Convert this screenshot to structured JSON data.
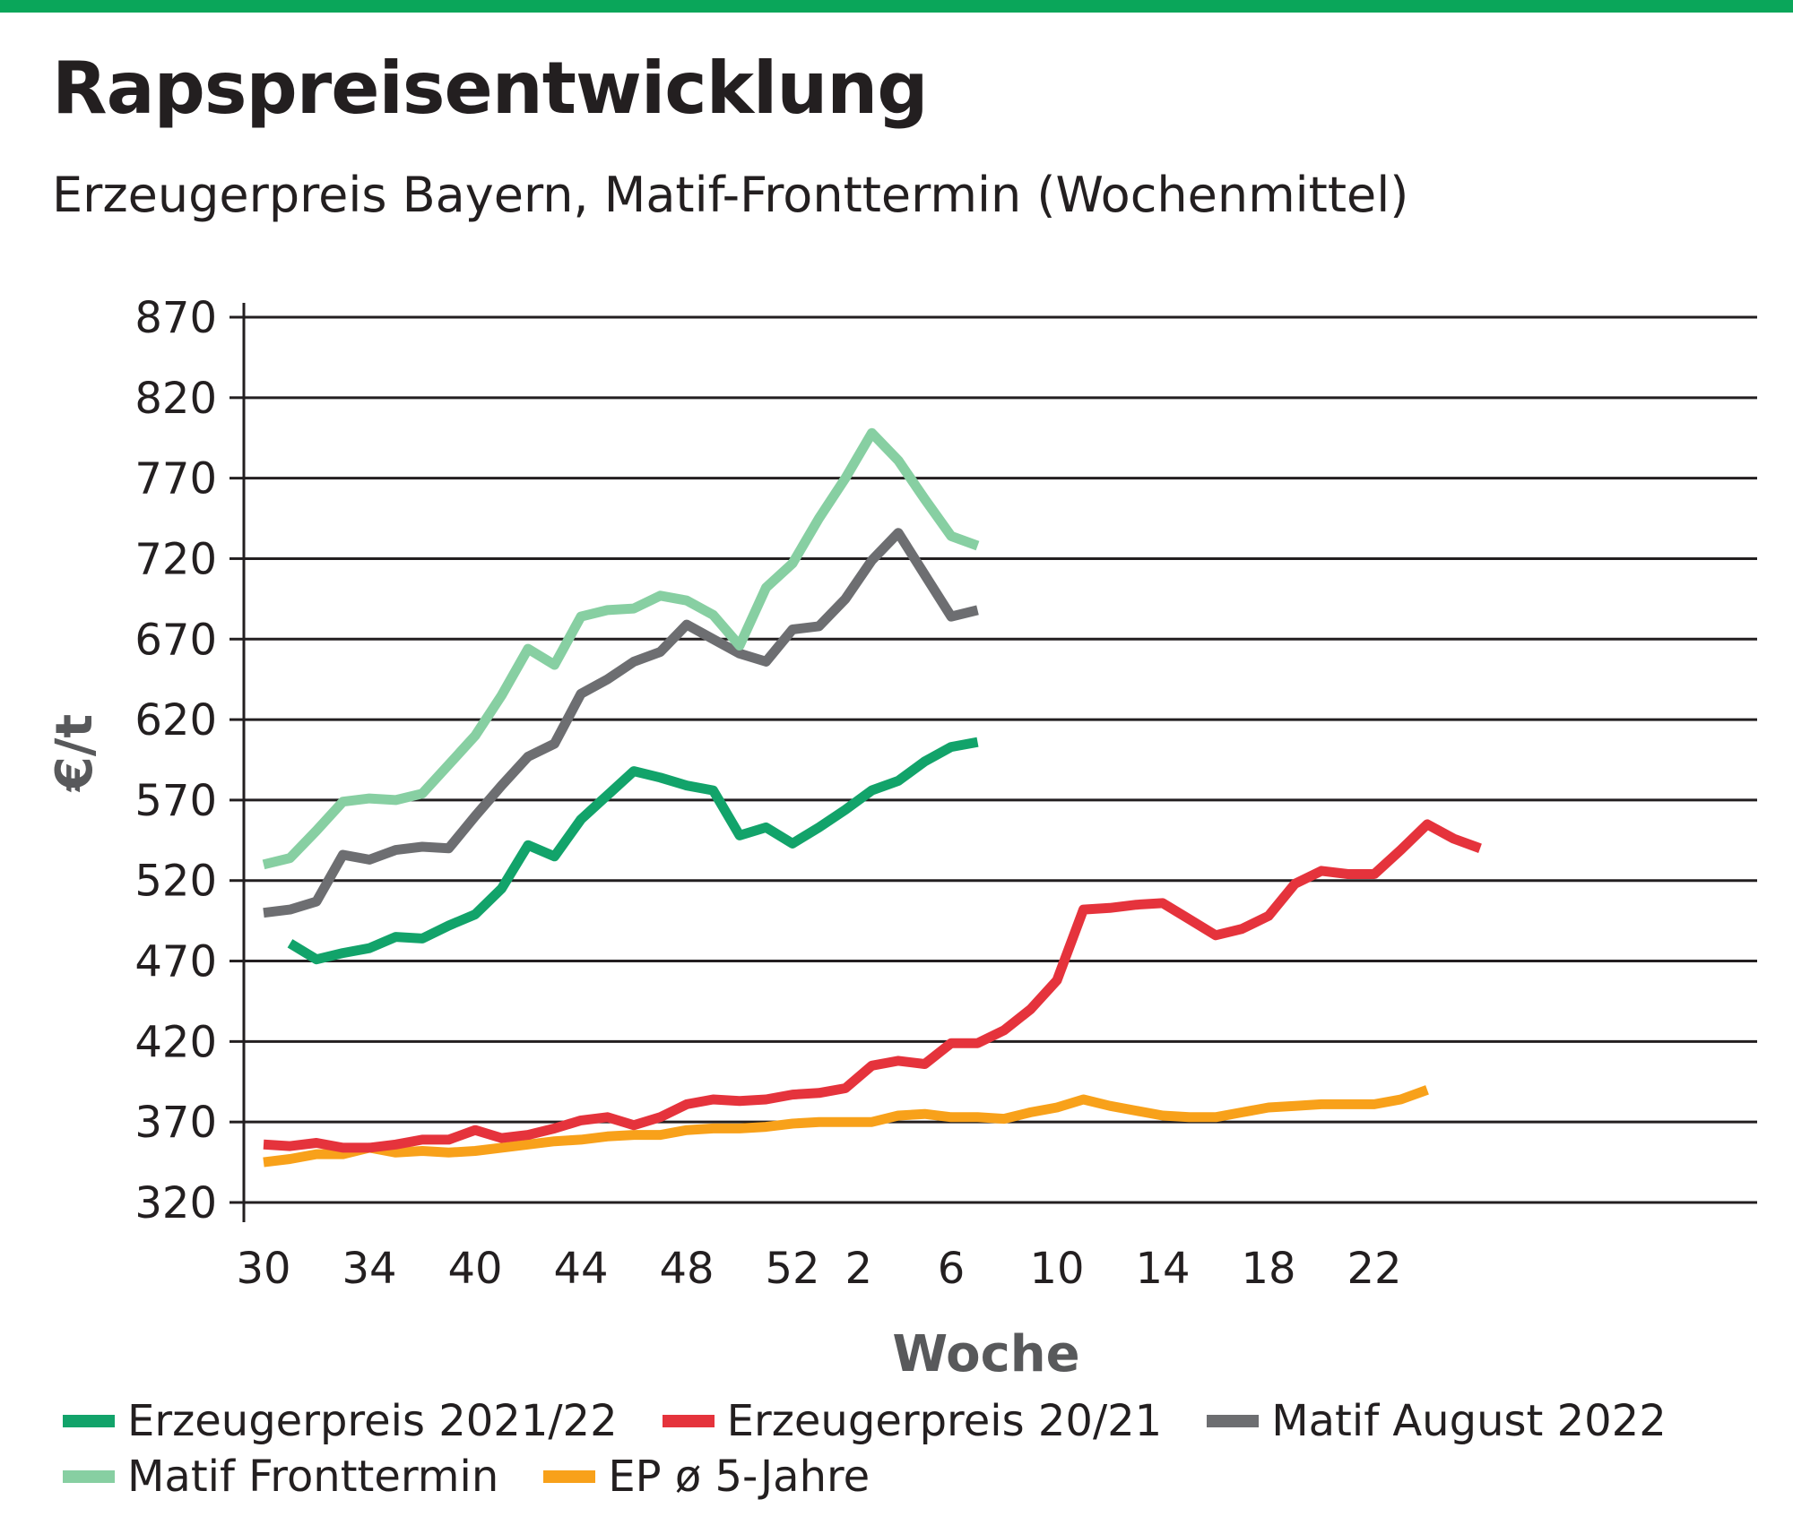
{
  "header": {
    "title": "Rapspreisentwicklung",
    "subtitle": "Erzeugerpreis Bayern, Matif-Fronttermin (Wochenmittel)"
  },
  "colors": {
    "top_bar": "#0aa65a",
    "text": "#231f20",
    "axis_title": "#58595b",
    "grid": "#231f20"
  },
  "chart_data": {
    "type": "line",
    "xlabel": "Woche",
    "ylabel": "€/t",
    "ylim": [
      320,
      870
    ],
    "yticks": [
      320,
      370,
      420,
      470,
      520,
      570,
      620,
      670,
      720,
      770,
      820,
      870
    ],
    "x_ticks": [
      {
        "i": 0,
        "label": "30"
      },
      {
        "i": 4,
        "label": "34"
      },
      {
        "i": 8,
        "label": "40"
      },
      {
        "i": 12,
        "label": "44"
      },
      {
        "i": 16,
        "label": "48"
      },
      {
        "i": 20,
        "label": "52"
      },
      {
        "i": 22.5,
        "label": "2"
      },
      {
        "i": 26,
        "label": "6"
      },
      {
        "i": 30,
        "label": "10"
      },
      {
        "i": 34,
        "label": "14"
      },
      {
        "i": 38,
        "label": "18"
      },
      {
        "i": 42,
        "label": "22"
      }
    ],
    "grid": "horizontal",
    "legend_position": "bottom",
    "series": [
      {
        "name": "Erzeugerpreis 2021/22",
        "color": "#12a36a",
        "values": [
          null,
          481,
          471,
          475,
          478,
          485,
          484,
          492,
          499,
          515,
          542,
          535,
          558,
          573,
          588,
          584,
          579,
          576,
          548,
          553,
          543,
          553,
          564,
          576,
          582,
          594,
          603,
          606
        ]
      },
      {
        "name": "Erzeugerpreis 20/21",
        "color": "#e5333c",
        "values": [
          356,
          355,
          357,
          354,
          354,
          356,
          359,
          359,
          365,
          360,
          362,
          366,
          371,
          373,
          368,
          373,
          381,
          384,
          383,
          384,
          387,
          388,
          391,
          405,
          408,
          406,
          419,
          419,
          427,
          440,
          458,
          502,
          503,
          505,
          506,
          496,
          486,
          490,
          498,
          518,
          526,
          524,
          524,
          539,
          555,
          546,
          540
        ]
      },
      {
        "name": "Matif August 2022",
        "color": "#6d6e71",
        "values": [
          500,
          502,
          507,
          536,
          533,
          539,
          541,
          540,
          560,
          579,
          597,
          605,
          636,
          645,
          656,
          662,
          679,
          670,
          661,
          656,
          676,
          678,
          695,
          719,
          736,
          710,
          684,
          688
        ]
      },
      {
        "name": "Matif Fronttermin",
        "color": "#87cfa2",
        "values": [
          530,
          534,
          551,
          569,
          571,
          570,
          574,
          592,
          610,
          635,
          664,
          654,
          684,
          688,
          689,
          697,
          694,
          685,
          666,
          702,
          717,
          745,
          770,
          798,
          781,
          757,
          734,
          728
        ]
      },
      {
        "name": "EP ø 5-Jahre",
        "color": "#f8a11a",
        "values": [
          345,
          347,
          350,
          350,
          354,
          351,
          352,
          351,
          352,
          354,
          356,
          358,
          359,
          361,
          362,
          362,
          365,
          366,
          366,
          367,
          369,
          370,
          370,
          370,
          374,
          375,
          373,
          373,
          372,
          376,
          379,
          384,
          380,
          377,
          374,
          373,
          373,
          376,
          379,
          380,
          381,
          381,
          381,
          384,
          390
        ]
      }
    ]
  }
}
